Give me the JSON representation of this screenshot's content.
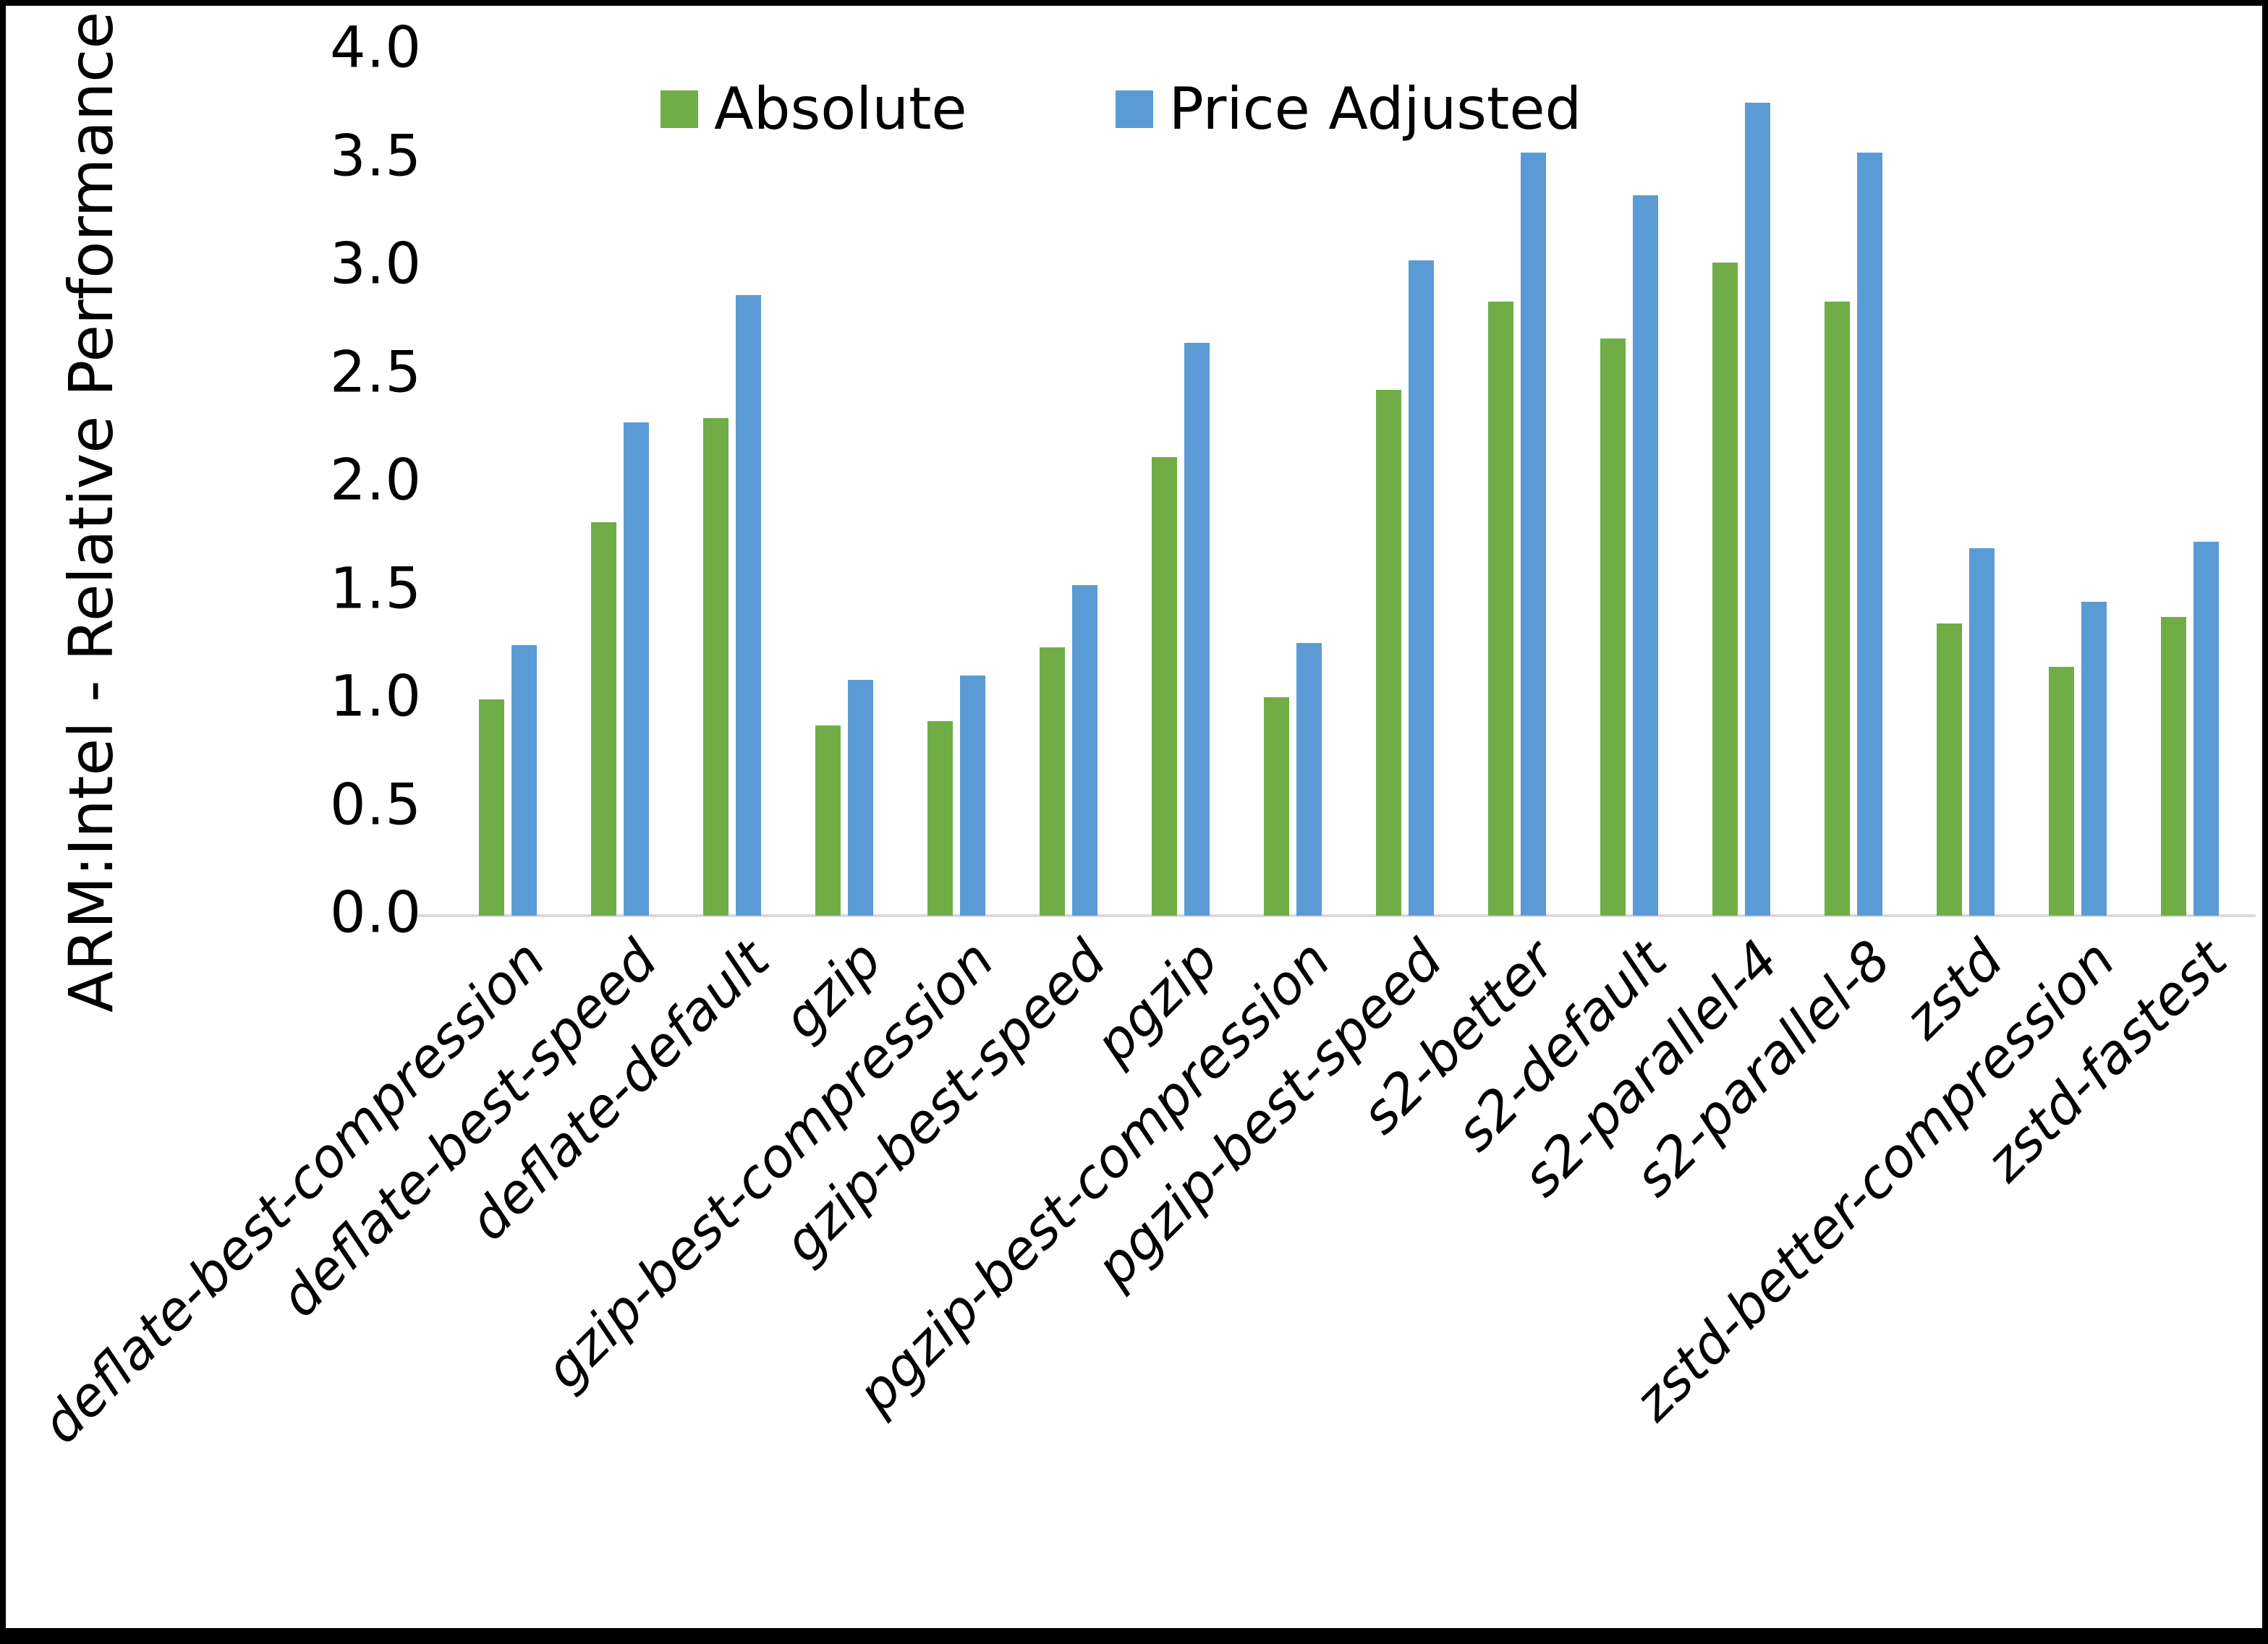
{
  "chart_data": {
    "type": "bar",
    "title": "",
    "xlabel": "",
    "ylabel": "ARM:Intel - Relative Performance",
    "ylim": [
      0.0,
      4.0
    ],
    "ytick_step": 0.5,
    "yticks": [
      "0.0",
      "0.5",
      "1.0",
      "1.5",
      "2.0",
      "2.5",
      "3.0",
      "3.5",
      "4.0"
    ],
    "grid": false,
    "legend_position": "top-inside",
    "categories": [
      "deflate-best-compression",
      "deflate-best-speed",
      "deflate-default",
      "gzip",
      "gzip-best-compression",
      "gzip-best-speed",
      "pgzip",
      "pgzip-best-compression",
      "pgzip-best-speed",
      "s2-better",
      "s2-default",
      "s2-parallel-4",
      "s2-parallel-8",
      "zstd",
      "zstd-better-compression",
      "zstd-fastest"
    ],
    "series": [
      {
        "name": "Absolute",
        "color": "#70AD47",
        "values": [
          1.0,
          1.82,
          2.3,
          0.88,
          0.9,
          1.24,
          2.12,
          1.01,
          2.43,
          2.84,
          2.67,
          3.02,
          2.84,
          1.35,
          1.15,
          1.38
        ]
      },
      {
        "name": "Price Adjusted",
        "color": "#5B9BD5",
        "values": [
          1.25,
          2.28,
          2.87,
          1.09,
          1.11,
          1.53,
          2.65,
          1.26,
          3.03,
          3.53,
          3.33,
          3.76,
          3.53,
          1.7,
          1.45,
          1.73
        ]
      }
    ]
  },
  "colors": {
    "absolute": "#70AD47",
    "price_adjusted": "#5B9BD5",
    "axis_line": "#D9D9D9",
    "text": "#000000",
    "background": "#FFFFFF",
    "border": "#000000"
  }
}
